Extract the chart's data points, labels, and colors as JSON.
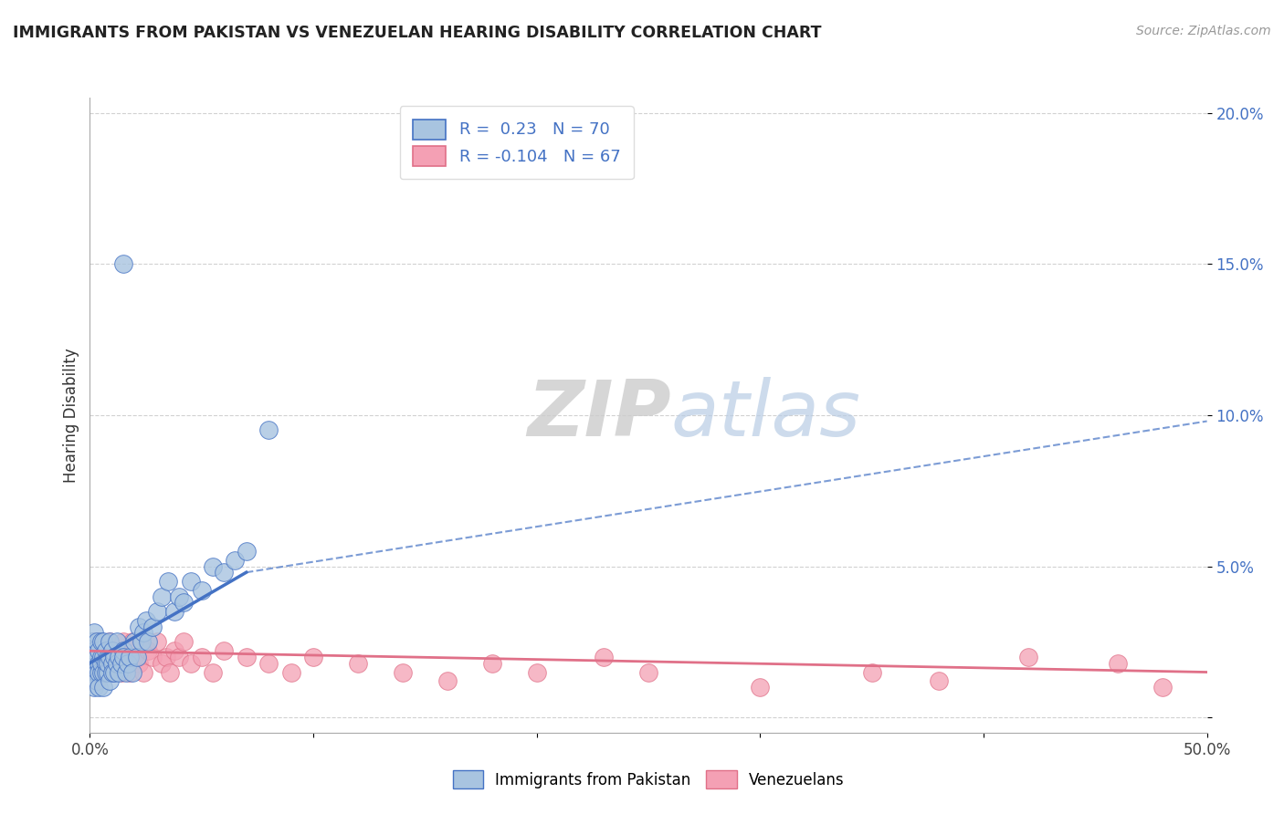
{
  "title": "IMMIGRANTS FROM PAKISTAN VS VENEZUELAN HEARING DISABILITY CORRELATION CHART",
  "source_text": "Source: ZipAtlas.com",
  "ylabel": "Hearing Disability",
  "legend_label1": "Immigrants from Pakistan",
  "legend_label2": "Venezuelans",
  "R1": 0.23,
  "N1": 70,
  "R2": -0.104,
  "N2": 67,
  "xlim": [
    0.0,
    0.5
  ],
  "ylim": [
    -0.005,
    0.205
  ],
  "color1": "#a8c4e0",
  "color2": "#f4a0b4",
  "line_color1": "#4472c4",
  "line_color2": "#e07088",
  "background_color": "#ffffff",
  "watermark_zip": "ZIP",
  "watermark_atlas": "atlas",
  "pk_x": [
    0.001,
    0.001,
    0.001,
    0.002,
    0.002,
    0.002,
    0.002,
    0.003,
    0.003,
    0.003,
    0.003,
    0.004,
    0.004,
    0.004,
    0.004,
    0.005,
    0.005,
    0.005,
    0.005,
    0.006,
    0.006,
    0.006,
    0.006,
    0.007,
    0.007,
    0.007,
    0.008,
    0.008,
    0.008,
    0.009,
    0.009,
    0.009,
    0.01,
    0.01,
    0.01,
    0.011,
    0.011,
    0.012,
    0.012,
    0.013,
    0.013,
    0.014,
    0.015,
    0.015,
    0.016,
    0.017,
    0.018,
    0.019,
    0.02,
    0.021,
    0.022,
    0.023,
    0.024,
    0.025,
    0.026,
    0.028,
    0.03,
    0.032,
    0.035,
    0.038,
    0.04,
    0.042,
    0.045,
    0.05,
    0.055,
    0.06,
    0.065,
    0.07,
    0.015,
    0.08
  ],
  "pk_y": [
    0.02,
    0.015,
    0.025,
    0.018,
    0.022,
    0.01,
    0.028,
    0.015,
    0.02,
    0.012,
    0.025,
    0.018,
    0.022,
    0.015,
    0.01,
    0.02,
    0.015,
    0.025,
    0.018,
    0.02,
    0.015,
    0.025,
    0.01,
    0.018,
    0.022,
    0.015,
    0.02,
    0.015,
    0.018,
    0.012,
    0.02,
    0.025,
    0.018,
    0.015,
    0.022,
    0.02,
    0.015,
    0.018,
    0.025,
    0.02,
    0.015,
    0.018,
    0.022,
    0.02,
    0.015,
    0.018,
    0.02,
    0.015,
    0.025,
    0.02,
    0.03,
    0.025,
    0.028,
    0.032,
    0.025,
    0.03,
    0.035,
    0.04,
    0.045,
    0.035,
    0.04,
    0.038,
    0.045,
    0.042,
    0.05,
    0.048,
    0.052,
    0.055,
    0.15,
    0.095
  ],
  "vz_x": [
    0.001,
    0.001,
    0.001,
    0.002,
    0.002,
    0.002,
    0.003,
    0.003,
    0.003,
    0.004,
    0.004,
    0.004,
    0.005,
    0.005,
    0.005,
    0.006,
    0.006,
    0.007,
    0.007,
    0.008,
    0.008,
    0.009,
    0.009,
    0.01,
    0.01,
    0.011,
    0.012,
    0.013,
    0.014,
    0.015,
    0.016,
    0.017,
    0.018,
    0.019,
    0.02,
    0.022,
    0.024,
    0.026,
    0.028,
    0.03,
    0.032,
    0.034,
    0.036,
    0.038,
    0.04,
    0.042,
    0.045,
    0.05,
    0.055,
    0.06,
    0.07,
    0.08,
    0.09,
    0.1,
    0.12,
    0.14,
    0.16,
    0.18,
    0.2,
    0.23,
    0.25,
    0.3,
    0.35,
    0.38,
    0.42,
    0.46,
    0.48
  ],
  "vz_y": [
    0.018,
    0.022,
    0.015,
    0.02,
    0.015,
    0.025,
    0.018,
    0.022,
    0.012,
    0.02,
    0.015,
    0.025,
    0.018,
    0.022,
    0.015,
    0.02,
    0.015,
    0.018,
    0.022,
    0.02,
    0.015,
    0.018,
    0.025,
    0.02,
    0.015,
    0.018,
    0.022,
    0.02,
    0.015,
    0.025,
    0.018,
    0.02,
    0.015,
    0.025,
    0.02,
    0.018,
    0.015,
    0.022,
    0.02,
    0.025,
    0.018,
    0.02,
    0.015,
    0.022,
    0.02,
    0.025,
    0.018,
    0.02,
    0.015,
    0.022,
    0.02,
    0.018,
    0.015,
    0.02,
    0.018,
    0.015,
    0.012,
    0.018,
    0.015,
    0.02,
    0.015,
    0.01,
    0.015,
    0.012,
    0.02,
    0.018,
    0.01
  ],
  "pk_trend_x0": 0.0,
  "pk_trend_y0": 0.018,
  "pk_trend_x1": 0.07,
  "pk_trend_y1": 0.048,
  "pk_trend_dash_x0": 0.07,
  "pk_trend_dash_y0": 0.048,
  "pk_trend_dash_x1": 0.5,
  "pk_trend_dash_y1": 0.098,
  "vz_trend_x0": 0.0,
  "vz_trend_y0": 0.022,
  "vz_trend_x1": 0.5,
  "vz_trend_y1": 0.015
}
